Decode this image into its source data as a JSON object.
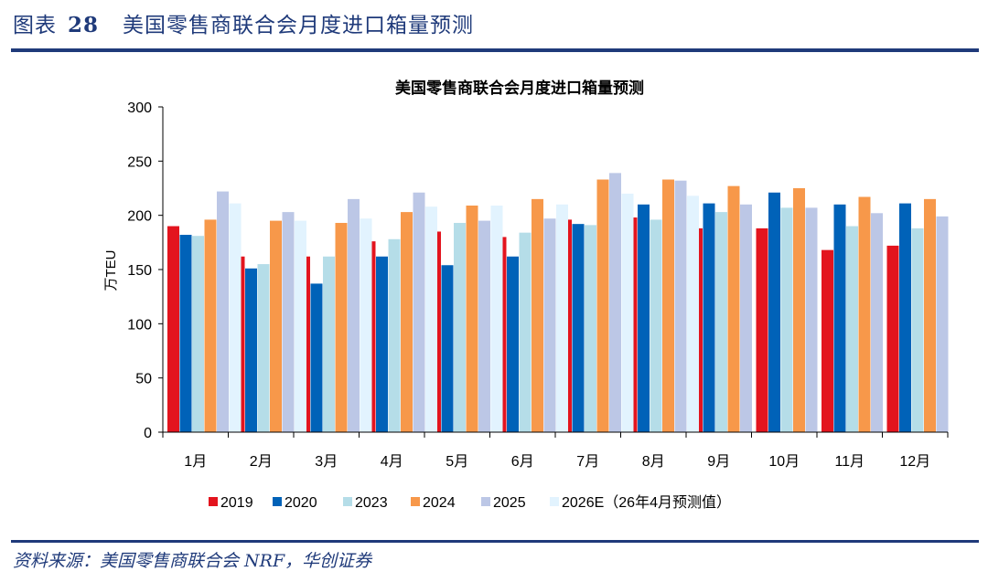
{
  "figure": {
    "label": "图表",
    "number": "28",
    "title": "美国零售商联合会月度进口箱量预测"
  },
  "source": "资料来源：美国零售商联合会 NRF，华创证券",
  "chart_data": {
    "type": "bar",
    "title": "美国零售商联合会月度进口箱量预测",
    "xlabel": "",
    "ylabel": "万TEU",
    "ylim": [
      0,
      300
    ],
    "yticks": [
      0,
      50,
      100,
      150,
      200,
      250,
      300
    ],
    "grid": false,
    "legend_position": "bottom",
    "categories": [
      "1月",
      "2月",
      "3月",
      "4月",
      "5月",
      "6月",
      "7月",
      "8月",
      "9月",
      "10月",
      "11月",
      "12月"
    ],
    "series": [
      {
        "name": "2019",
        "color": "#e3141e",
        "values": [
          190,
          162,
          162,
          176,
          185,
          180,
          196,
          198,
          188,
          188,
          168,
          172
        ]
      },
      {
        "name": "2020",
        "color": "#0062b8",
        "values": [
          182,
          151,
          137,
          162,
          154,
          162,
          192,
          210,
          211,
          221,
          210,
          211
        ]
      },
      {
        "name": "2023",
        "color": "#b5dde8",
        "values": [
          181,
          155,
          162,
          178,
          193,
          184,
          191,
          196,
          203,
          207,
          190,
          188
        ]
      },
      {
        "name": "2024",
        "color": "#f7984a",
        "values": [
          196,
          195,
          193,
          203,
          209,
          215,
          233,
          233,
          227,
          225,
          217,
          215
        ]
      },
      {
        "name": "2025",
        "color": "#bcc7e6",
        "values": [
          222,
          203,
          215,
          221,
          195,
          197,
          239,
          232,
          210,
          207,
          202,
          199
        ]
      },
      {
        "name": "2026E（26年4月预测值）",
        "color": "#e2f3fe",
        "values": [
          211,
          195,
          197,
          208,
          209,
          210,
          220,
          218,
          null,
          null,
          null,
          null
        ]
      }
    ]
  }
}
